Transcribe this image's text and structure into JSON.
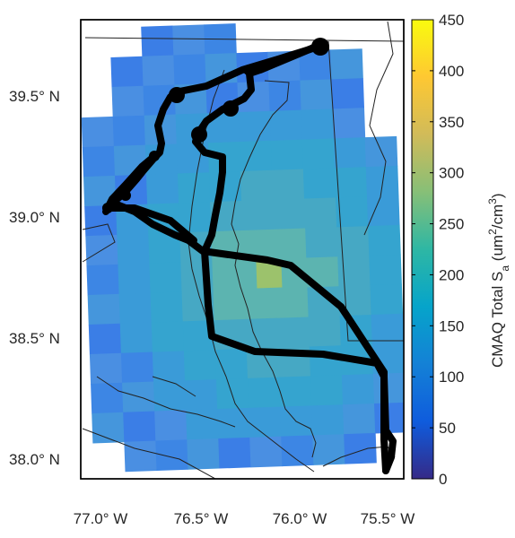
{
  "map": {
    "lat_ticks": [
      "39.5° N",
      "39.0° N",
      "38.5° N",
      "38.0° N"
    ],
    "lon_ticks": [
      "77.0° W",
      "76.5° W",
      "76.0° W",
      "75.5° W"
    ],
    "colormap": "parula",
    "track_color": "#000000"
  },
  "colorbar": {
    "label": "CMAQ Total Sa (um2/cm3)",
    "label_main": "CMAQ Total S",
    "label_sub": "a",
    "label_mid": " (um",
    "label_sup": "2",
    "label_mid2": "/cm",
    "label_sup2": "3",
    "label_end": ")",
    "min": 0,
    "max": 450,
    "ticks": [
      "0",
      "50",
      "100",
      "150",
      "200",
      "250",
      "300",
      "350",
      "400",
      "450"
    ]
  }
}
